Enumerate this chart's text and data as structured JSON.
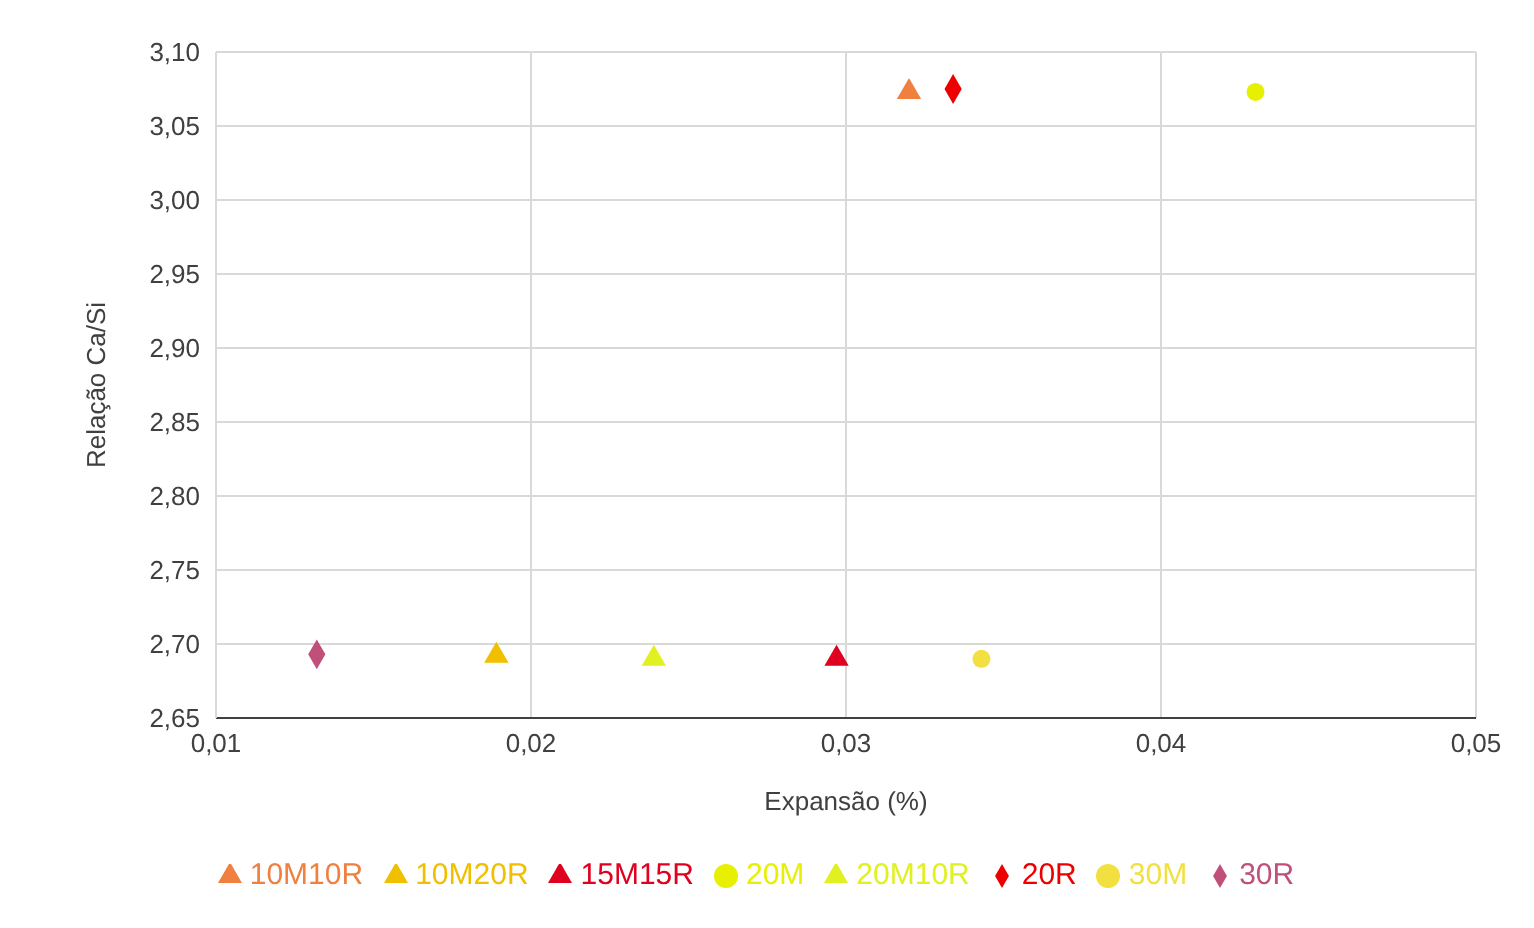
{
  "chart_data": {
    "type": "scatter",
    "xlabel": "Expansão (%)",
    "ylabel": "Relação Ca/Si",
    "xlim": [
      0.01,
      0.05
    ],
    "xticks": [
      {
        "value": 0.01,
        "label": "0,01"
      },
      {
        "value": 0.02,
        "label": "0,02"
      },
      {
        "value": 0.03,
        "label": "0,03"
      },
      {
        "value": 0.04,
        "label": "0,04"
      },
      {
        "value": 0.05,
        "label": "0,05"
      }
    ],
    "ylim": [
      2.65,
      3.1
    ],
    "yticks": [
      {
        "value": 2.65,
        "label": "2,65"
      },
      {
        "value": 2.7,
        "label": "2,70"
      },
      {
        "value": 2.75,
        "label": "2,75"
      },
      {
        "value": 2.8,
        "label": "2,80"
      },
      {
        "value": 2.85,
        "label": "2,85"
      },
      {
        "value": 2.9,
        "label": "2,90"
      },
      {
        "value": 2.95,
        "label": "2,95"
      },
      {
        "value": 3.0,
        "label": "3,00"
      },
      {
        "value": 3.05,
        "label": "3,05"
      },
      {
        "value": 3.1,
        "label": "3,10"
      }
    ],
    "grid": true,
    "legend": "bottom",
    "series": [
      {
        "name": "20M",
        "color": "#e6f000",
        "marker": "circle",
        "x": [
          0.043
        ],
        "values": [
          3.073
        ]
      },
      {
        "name": "30M",
        "color": "#f2e040",
        "marker": "circle",
        "x": [
          0.0343
        ],
        "values": [
          2.69
        ]
      },
      {
        "name": "20R",
        "color": "#ee0000",
        "marker": "diamond",
        "x": [
          0.0334
        ],
        "values": [
          3.075
        ]
      },
      {
        "name": "30R",
        "color": "#c0507a",
        "marker": "diamond",
        "x": [
          0.0132
        ],
        "values": [
          2.693
        ]
      },
      {
        "name": "10M10R",
        "color": "#f08040",
        "marker": "triangle",
        "x": [
          0.032
        ],
        "values": [
          3.073
        ]
      },
      {
        "name": "20M10R",
        "color": "#e0f020",
        "marker": "triangle",
        "x": [
          0.0239
        ],
        "values": [
          2.69
        ]
      },
      {
        "name": "10M20R",
        "color": "#f0c000",
        "marker": "triangle",
        "x": [
          0.0189
        ],
        "values": [
          2.692
        ]
      },
      {
        "name": "15M15R",
        "color": "#e00020",
        "marker": "triangle",
        "x": [
          0.0297
        ],
        "values": [
          2.69
        ]
      }
    ]
  }
}
